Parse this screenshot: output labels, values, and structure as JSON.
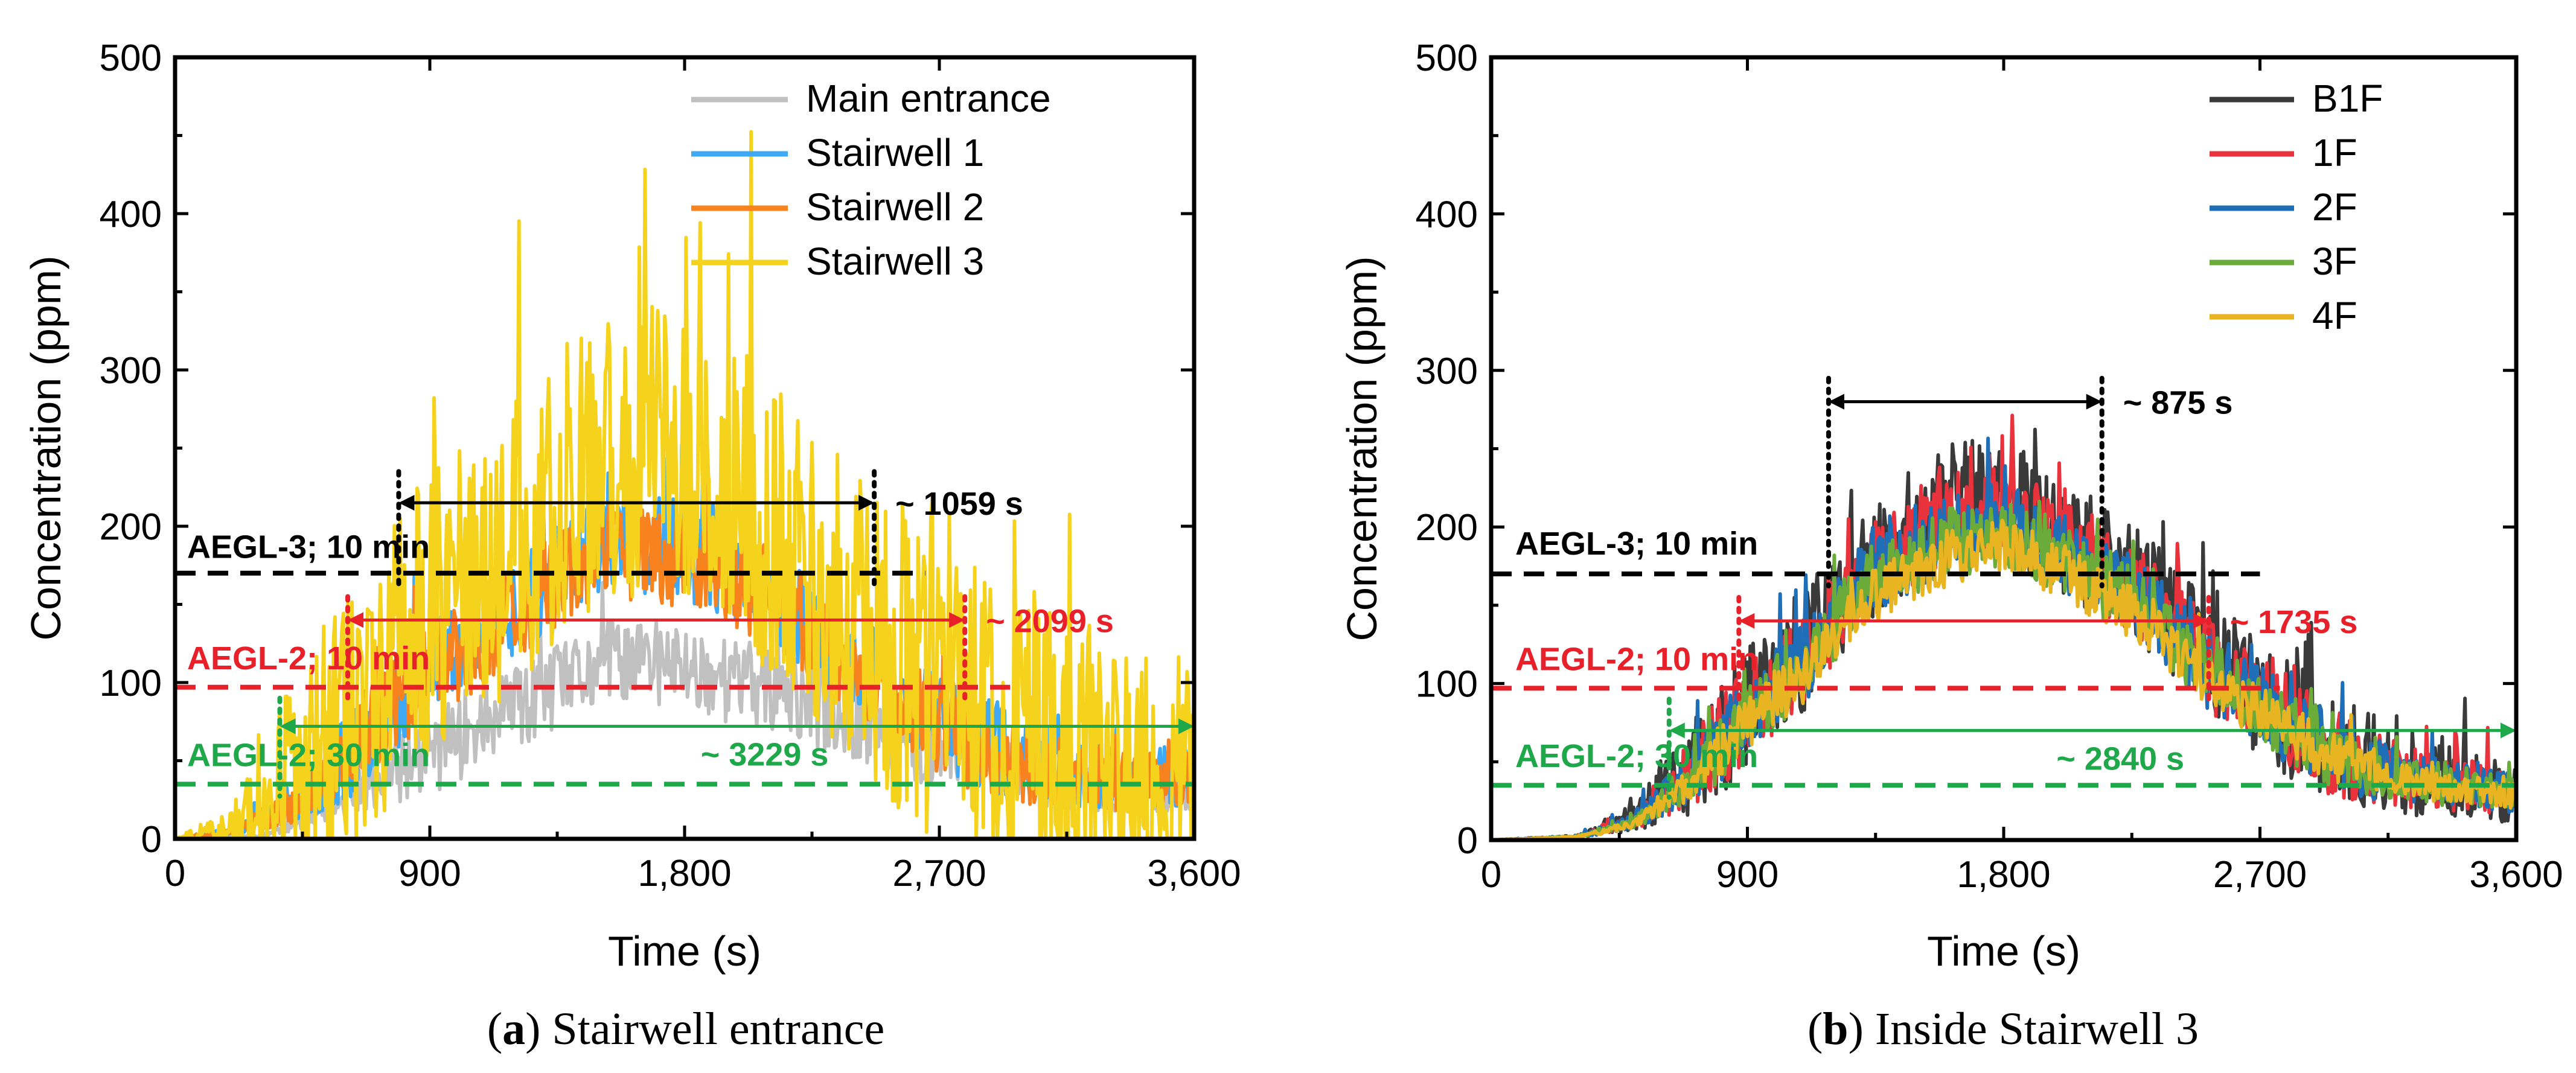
{
  "chart_data": [
    {
      "type": "line",
      "caption_letter": "a",
      "caption_text": ") Stairwell entrance",
      "caption_open": "(",
      "xlabel": "Time (s)",
      "ylabel": "Concentration (ppm)",
      "xlim": [
        0,
        3600
      ],
      "ylim": [
        0,
        500
      ],
      "xticks": [
        "0",
        "900",
        "1,800",
        "2,700",
        "3,600"
      ],
      "xtick_values": [
        0,
        900,
        1800,
        2700,
        3600
      ],
      "yticks": [
        "0",
        "100",
        "200",
        "300",
        "400",
        "500"
      ],
      "ytick_values": [
        0,
        100,
        200,
        300,
        400,
        500
      ],
      "legend": [
        {
          "name": "Main entrance",
          "color": "#c0c0c0"
        },
        {
          "name": "Stairwell 1",
          "color": "#3fa9f5"
        },
        {
          "name": "Stairwell 2",
          "color": "#f7821e"
        },
        {
          "name": "Stairwell 3",
          "color": "#f5d21b"
        }
      ],
      "series_profiles": [
        {
          "name": "Main entrance",
          "color": "#c0c0c0",
          "t": [
            0,
            300,
            450,
            700,
            1000,
            1300,
            1550,
            1800,
            2100,
            2500,
            2900,
            3300,
            3600
          ],
          "v": [
            0,
            2,
            10,
            35,
            65,
            90,
            115,
            110,
            95,
            70,
            45,
            30,
            25
          ],
          "noise": 28,
          "seed": 11
        },
        {
          "name": "Stairwell 1",
          "color": "#3fa9f5",
          "t": [
            0,
            200,
            500,
            700,
            900,
            1200,
            1500,
            1800,
            2100,
            2400,
            2700,
            3000,
            3300,
            3600
          ],
          "v": [
            0,
            5,
            30,
            75,
            110,
            150,
            190,
            185,
            160,
            115,
            75,
            50,
            40,
            40
          ],
          "noise": 32,
          "seed": 23
        },
        {
          "name": "Stairwell 2",
          "color": "#f7821e",
          "t": [
            0,
            200,
            500,
            700,
            900,
            1200,
            1500,
            1800,
            2100,
            2400,
            2700,
            3000,
            3300,
            3600
          ],
          "v": [
            0,
            4,
            28,
            70,
            105,
            145,
            185,
            180,
            155,
            110,
            72,
            48,
            38,
            38
          ],
          "noise": 32,
          "seed": 37
        },
        {
          "name": "Stairwell 3",
          "color": "#f5d21b",
          "t": [
            0,
            200,
            450,
            700,
            900,
            1200,
            1450,
            1700,
            1900,
            2200,
            2450,
            2700,
            3000,
            3300,
            3600
          ],
          "v": [
            0,
            8,
            45,
            100,
            140,
            190,
            240,
            250,
            230,
            180,
            130,
            90,
            65,
            50,
            45
          ],
          "noise": 95,
          "seed": 59
        }
      ],
      "thresholds": [
        {
          "label": "AEGL-3; 10 min",
          "value": 170,
          "color": "#000000",
          "x_start": 0,
          "x_end": 2650
        },
        {
          "label": "AEGL-2; 10 min",
          "value": 97,
          "color": "#e8202a",
          "x_start": 0,
          "x_end": 2950
        },
        {
          "label": "AEGL-2; 30 min",
          "value": 35,
          "color": "#1fa84a",
          "x_start": 0,
          "x_end": 3600
        }
      ],
      "durations": [
        {
          "label": "~ 1059 s",
          "x_start": 790,
          "x_end": 2470,
          "y": 215,
          "color": "#000000",
          "vline_top": 235
        },
        {
          "label": "~ 2099 s",
          "x_start": 610,
          "x_end": 2790,
          "y": 140,
          "color": "#e8202a",
          "vline_top": 155
        },
        {
          "label": "~ 3229 s",
          "x_start": 370,
          "x_end": 3600,
          "y": 72,
          "color": "#1fa84a",
          "vline_top": 90
        }
      ]
    },
    {
      "type": "line",
      "caption_letter": "b",
      "caption_text": ") Inside Stairwell 3",
      "caption_open": "(",
      "xlabel": "Time (s)",
      "ylabel": "Concentration (ppm)",
      "xlim": [
        0,
        3600
      ],
      "ylim": [
        0,
        500
      ],
      "xticks": [
        "0",
        "900",
        "1,800",
        "2,700",
        "3,600"
      ],
      "xtick_values": [
        0,
        900,
        1800,
        2700,
        3600
      ],
      "yticks": [
        "0",
        "100",
        "200",
        "300",
        "400",
        "500"
      ],
      "ytick_values": [
        0,
        100,
        200,
        300,
        400,
        500
      ],
      "legend": [
        {
          "name": "B1F",
          "color": "#3a3a3a"
        },
        {
          "name": "1F",
          "color": "#e8323c"
        },
        {
          "name": "2F",
          "color": "#1f6fb8"
        },
        {
          "name": "3F",
          "color": "#6aab3a"
        },
        {
          "name": "4F",
          "color": "#e8b422"
        }
      ],
      "series_profiles": [
        {
          "name": "B1F",
          "color": "#3a3a3a",
          "t": [
            0,
            300,
            500,
            700,
            900,
            1100,
            1300,
            1600,
            1800,
            2000,
            2300,
            2500,
            2700,
            3000,
            3300,
            3600
          ],
          "v": [
            0,
            2,
            15,
            45,
            85,
            120,
            175,
            215,
            220,
            195,
            160,
            120,
            90,
            55,
            40,
            30
          ],
          "noise": 38,
          "seed": 71
        },
        {
          "name": "1F",
          "color": "#e8323c",
          "t": [
            0,
            300,
            500,
            700,
            900,
            1100,
            1300,
            1600,
            1800,
            2000,
            2300,
            2500,
            2700,
            3000,
            3300,
            3600
          ],
          "v": [
            0,
            2,
            13,
            42,
            82,
            115,
            168,
            205,
            210,
            190,
            155,
            115,
            88,
            52,
            38,
            30
          ],
          "noise": 30,
          "seed": 83
        },
        {
          "name": "2F",
          "color": "#1f6fb8",
          "t": [
            0,
            300,
            500,
            700,
            900,
            1100,
            1300,
            1600,
            1800,
            2000,
            2300,
            2500,
            2700,
            3000,
            3300,
            3600
          ],
          "v": [
            0,
            2,
            12,
            40,
            80,
            112,
            162,
            198,
            202,
            185,
            150,
            112,
            86,
            50,
            37,
            30
          ],
          "noise": 26,
          "seed": 97
        },
        {
          "name": "3F",
          "color": "#6aab3a",
          "t": [
            0,
            300,
            500,
            700,
            900,
            1100,
            1300,
            1600,
            1800,
            2000,
            2300,
            2500,
            2700,
            3000,
            3300,
            3600
          ],
          "v": [
            0,
            2,
            11,
            38,
            78,
            110,
            158,
            190,
            195,
            180,
            146,
            110,
            84,
            49,
            36,
            29
          ],
          "noise": 22,
          "seed": 101
        },
        {
          "name": "4F",
          "color": "#e8b422",
          "t": [
            0,
            300,
            500,
            700,
            900,
            1100,
            1300,
            1600,
            1800,
            2000,
            2300,
            2500,
            2700,
            3000,
            3300,
            3600
          ],
          "v": [
            0,
            2,
            10,
            36,
            76,
            106,
            152,
            180,
            186,
            172,
            140,
            106,
            82,
            48,
            35,
            28
          ],
          "noise": 18,
          "seed": 113
        }
      ],
      "thresholds": [
        {
          "label": "AEGL-3; 10 min",
          "value": 170,
          "color": "#000000",
          "x_start": 0,
          "x_end": 2700
        },
        {
          "label": "AEGL-2; 10 min",
          "value": 97,
          "color": "#e8202a",
          "x_start": 0,
          "x_end": 2770
        },
        {
          "label": "AEGL-2; 30 min",
          "value": 35,
          "color": "#1fa84a",
          "x_start": 0,
          "x_end": 3600
        }
      ],
      "durations": [
        {
          "label": "~ 875 s",
          "x_start": 1185,
          "x_end": 2145,
          "y": 280,
          "color": "#000000",
          "vline_top": 295
        },
        {
          "label": "~ 1735 s",
          "x_start": 870,
          "x_end": 2520,
          "y": 140,
          "color": "#e8202a",
          "vline_top": 155
        },
        {
          "label": "~ 2840 s",
          "x_start": 625,
          "x_end": 3600,
          "y": 70,
          "color": "#1fa84a",
          "vline_top": 90
        }
      ]
    }
  ]
}
